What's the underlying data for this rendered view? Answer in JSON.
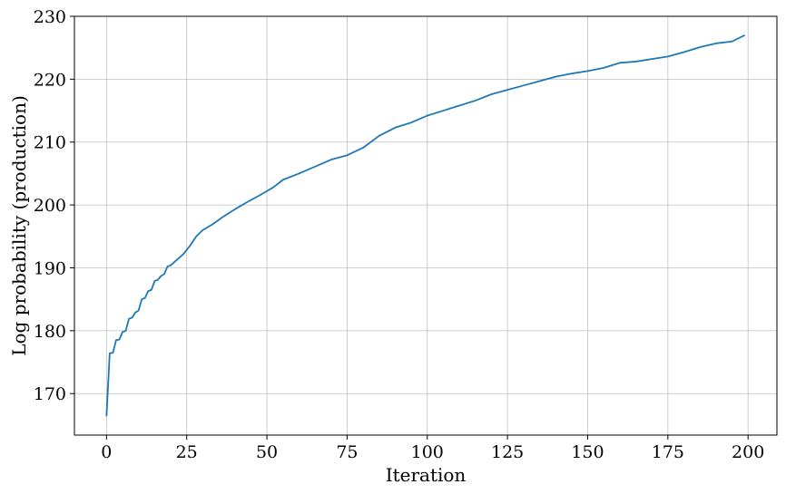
{
  "chart_data": {
    "type": "line",
    "title": "",
    "xlabel": "Iteration",
    "ylabel": "Log probability (production)",
    "xlim": [
      -10,
      209
    ],
    "ylim": [
      163.4,
      230
    ],
    "xticks": [
      0,
      25,
      50,
      75,
      100,
      125,
      150,
      175,
      200
    ],
    "yticks": [
      170,
      180,
      190,
      200,
      210,
      220,
      230
    ],
    "grid": true,
    "legend": "none",
    "line_color": "#1f77b4",
    "series": [
      {
        "x": [
          0,
          1,
          2,
          3,
          4,
          5,
          6,
          7,
          8,
          9,
          10,
          11,
          12,
          13,
          14,
          15,
          16,
          17,
          18,
          19,
          20,
          22,
          24,
          26,
          28,
          30,
          33,
          36,
          40,
          44,
          48,
          52,
          55,
          60,
          65,
          70,
          75,
          80,
          85,
          90,
          95,
          100,
          105,
          110,
          115,
          120,
          125,
          130,
          135,
          140,
          145,
          150,
          155,
          160,
          165,
          170,
          175,
          180,
          185,
          190,
          195,
          199
        ],
        "y": [
          166.4,
          176.4,
          176.5,
          178.5,
          178.6,
          179.8,
          180.0,
          181.9,
          182.1,
          182.9,
          183.2,
          185.0,
          185.2,
          186.3,
          186.5,
          187.9,
          188.1,
          188.7,
          189.0,
          190.2,
          190.4,
          191.3,
          192.2,
          193.5,
          195.0,
          196.0,
          196.9,
          198.0,
          199.3,
          200.5,
          201.6,
          202.8,
          204.0,
          205.0,
          206.1,
          207.2,
          207.9,
          209.1,
          211.0,
          212.3,
          213.1,
          214.2,
          215.0,
          215.8,
          216.6,
          217.6,
          218.3,
          219.0,
          219.7,
          220.4,
          220.9,
          221.3,
          221.8,
          222.6,
          222.8,
          223.2,
          223.6,
          224.3,
          225.1,
          225.7,
          226.0,
          227.0
        ]
      }
    ]
  }
}
